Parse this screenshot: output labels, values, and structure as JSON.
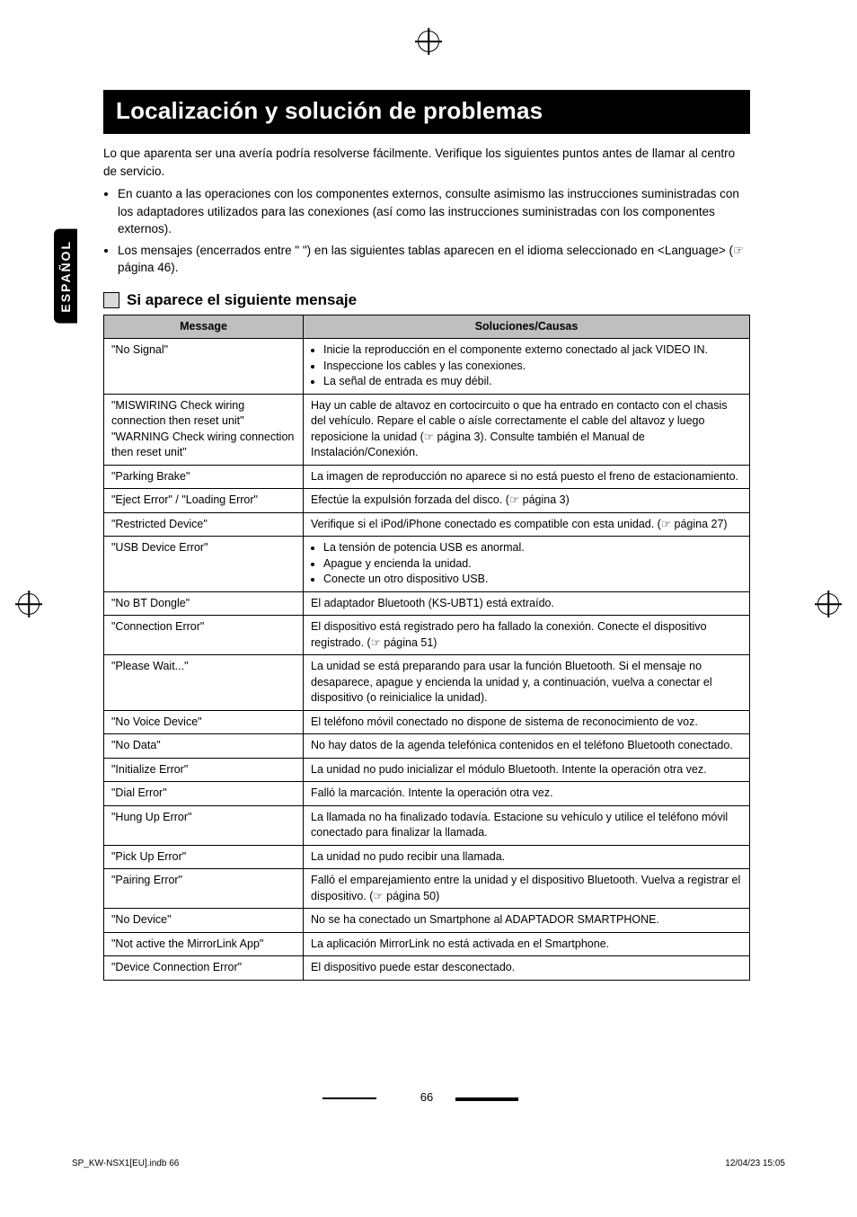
{
  "meta": {
    "side_tab": "ESPAÑOL",
    "page_number": "66",
    "footer_left": "SP_KW-NSX1[EU].indb   66",
    "footer_right": "12/04/23   15:05"
  },
  "title": "Localización y solución de problemas",
  "intro": {
    "lead": "Lo que aparenta ser una avería podría resolverse fácilmente. Verifique los siguientes puntos antes de llamar al centro de servicio.",
    "bullets": [
      "En cuanto a las operaciones con los componentes externos, consulte asimismo las instrucciones suministradas con los adaptadores utilizados para las conexiones (así como las instrucciones suministradas con los componentes externos).",
      "Los mensajes (encerrados entre \" \") en las siguientes tablas aparecen en el idioma seleccionado en <Language> (☞ página 46)."
    ]
  },
  "section_heading": "Si aparece el siguiente mensaje",
  "table": {
    "head_col1": "Message",
    "head_col2": "Soluciones/Causas",
    "rows": [
      {
        "msg": "\"No Signal\"",
        "sol_list": [
          "Inicie la reproducción en el componente externo conectado al jack VIDEO IN.",
          "Inspeccione los cables y las conexiones.",
          "La señal de entrada es muy débil."
        ]
      },
      {
        "msg": "\"MISWIRING Check wiring connection then reset unit\"\n\"WARNING Check wiring connection then reset unit\"",
        "sol_text": "Hay un cable de altavoz en cortocircuito o que ha entrado en contacto con el chasis del vehículo. Repare el cable o aísle correctamente el cable del altavoz y luego reposicione la unidad (☞ página 3). Consulte también el Manual de Instalación/Conexión."
      },
      {
        "msg": "\"Parking Brake\"",
        "sol_text": "La imagen de reproducción no aparece si no está puesto el freno de estacionamiento."
      },
      {
        "msg": "\"Eject Error\" / \"Loading Error\"",
        "sol_text": "Efectúe la expulsión forzada del disco. (☞ página 3)"
      },
      {
        "msg": "\"Restricted Device\"",
        "sol_text": "Verifique si el iPod/iPhone conectado es compatible con esta unidad. (☞ página 27)"
      },
      {
        "msg": "\"USB Device Error\"",
        "sol_list": [
          "La tensión de potencia USB es anormal.",
          "Apague y encienda la unidad.",
          "Conecte un otro dispositivo USB."
        ]
      },
      {
        "msg": "\"No BT Dongle\"",
        "sol_text": "El adaptador Bluetooth (KS-UBT1) está extraído."
      },
      {
        "msg": "\"Connection Error\"",
        "sol_text": "El dispositivo está registrado pero ha fallado la conexión. Conecte el dispositivo registrado. (☞ página 51)"
      },
      {
        "msg": "\"Please Wait...\"",
        "sol_text": "La unidad se está preparando para usar la función Bluetooth. Si el mensaje no desaparece, apague y encienda la unidad y, a continuación, vuelva a conectar el dispositivo (o reinicialice la unidad)."
      },
      {
        "msg": "\"No Voice Device\"",
        "sol_text": "El teléfono móvil conectado no dispone de sistema de reconocimiento de voz."
      },
      {
        "msg": "\"No Data\"",
        "sol_text": "No hay datos de la agenda telefónica contenidos en el teléfono Bluetooth conectado."
      },
      {
        "msg": "\"Initialize Error\"",
        "sol_text": "La unidad no pudo inicializar el módulo Bluetooth. Intente la operación otra vez."
      },
      {
        "msg": "\"Dial Error\"",
        "sol_text": "Falló la marcación. Intente la operación otra vez."
      },
      {
        "msg": "\"Hung Up Error\"",
        "sol_text": "La llamada no ha finalizado todavía. Estacione su vehículo y utilice el teléfono móvil conectado para finalizar la llamada."
      },
      {
        "msg": "\"Pick Up Error\"",
        "sol_text": "La unidad no pudo recibir una llamada."
      },
      {
        "msg": "\"Pairing Error\"",
        "sol_text": "Falló el emparejamiento entre la unidad y el dispositivo Bluetooth. Vuelva a registrar el dispositivo. (☞ página 50)"
      },
      {
        "msg": "\"No Device\"",
        "sol_text": "No se ha conectado un Smartphone al ADAPTADOR SMARTPHONE."
      },
      {
        "msg": "\"Not active the MirrorLink App\"",
        "sol_text": "La aplicación MirrorLink no está activada en el Smartphone."
      },
      {
        "msg": "\"Device Connection Error\"",
        "sol_text": "El dispositivo puede estar desconectado."
      }
    ]
  }
}
